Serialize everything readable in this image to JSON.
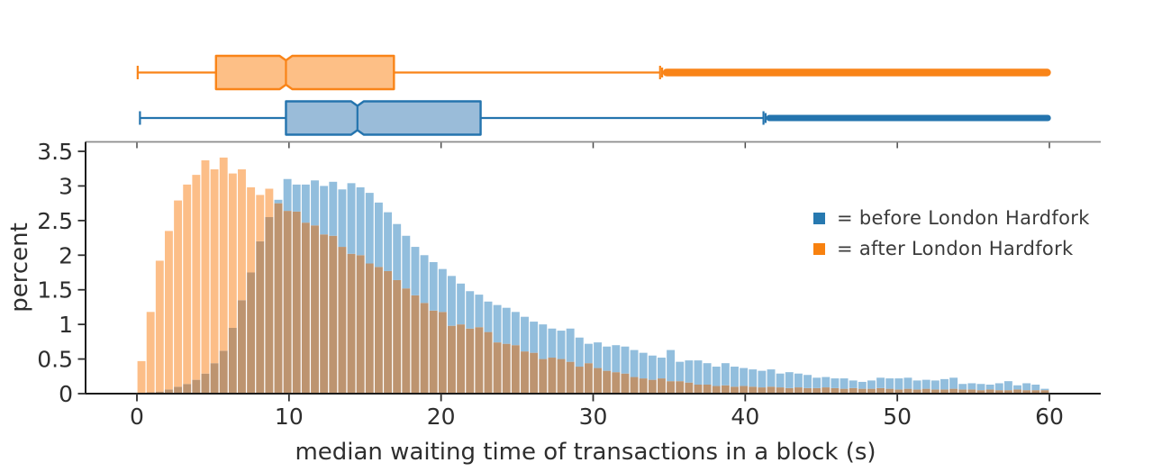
{
  "legend": {
    "items": [
      {
        "label": "= before London Hardfork",
        "color": "#2779b0"
      },
      {
        "label": "= after London Hardfork",
        "color": "#f8810f"
      }
    ]
  },
  "chart_data": {
    "type": "histogram+boxplot",
    "xlabel": "median waiting time of transactions in a block (s)",
    "ylabel": "percent",
    "x_ticks": [
      0,
      10,
      20,
      30,
      40,
      50,
      60
    ],
    "y_ticks": [
      0,
      0.5,
      1,
      1.5,
      2,
      2.5,
      3,
      3.5
    ],
    "xlim": [
      0,
      60
    ],
    "ylim": [
      0,
      3.5
    ],
    "grid": false,
    "legend_position": "upper right",
    "bin_start": 0,
    "bin_width": 0.6,
    "overlap_color": "#bd9470",
    "series": [
      {
        "name": "before London Hardfork",
        "color": "#92bedd",
        "values": [
          0.01,
          0.02,
          0.03,
          0.06,
          0.1,
          0.14,
          0.2,
          0.29,
          0.44,
          0.62,
          0.95,
          1.35,
          1.75,
          2.2,
          2.55,
          2.8,
          3.1,
          3.02,
          3.02,
          3.08,
          3.0,
          3.06,
          2.95,
          3.04,
          2.98,
          2.9,
          2.76,
          2.62,
          2.45,
          2.28,
          2.12,
          2.0,
          1.9,
          1.8,
          1.7,
          1.59,
          1.48,
          1.43,
          1.33,
          1.28,
          1.24,
          1.18,
          1.11,
          1.04,
          1.0,
          0.94,
          0.91,
          0.94,
          0.81,
          0.72,
          0.74,
          0.68,
          0.7,
          0.68,
          0.63,
          0.59,
          0.55,
          0.52,
          0.63,
          0.46,
          0.48,
          0.48,
          0.44,
          0.39,
          0.44,
          0.39,
          0.37,
          0.35,
          0.33,
          0.35,
          0.29,
          0.31,
          0.29,
          0.27,
          0.23,
          0.24,
          0.22,
          0.22,
          0.19,
          0.17,
          0.19,
          0.23,
          0.22,
          0.22,
          0.23,
          0.19,
          0.2,
          0.19,
          0.21,
          0.23,
          0.14,
          0.15,
          0.14,
          0.13,
          0.15,
          0.18,
          0.12,
          0.15,
          0.13,
          0.07
        ]
      },
      {
        "name": "after London Hardfork",
        "color": "#fcbe88",
        "values": [
          0.47,
          1.18,
          1.92,
          2.35,
          2.79,
          3.02,
          3.16,
          3.37,
          3.24,
          3.41,
          3.18,
          3.24,
          2.98,
          2.87,
          2.96,
          2.75,
          2.64,
          2.63,
          2.47,
          2.43,
          2.3,
          2.28,
          2.12,
          2.02,
          2.0,
          1.88,
          1.83,
          1.77,
          1.64,
          1.52,
          1.42,
          1.31,
          1.2,
          1.18,
          0.98,
          1.0,
          0.94,
          0.96,
          0.89,
          0.74,
          0.72,
          0.7,
          0.61,
          0.59,
          0.5,
          0.52,
          0.5,
          0.46,
          0.39,
          0.44,
          0.37,
          0.33,
          0.31,
          0.29,
          0.24,
          0.22,
          0.2,
          0.22,
          0.18,
          0.18,
          0.16,
          0.13,
          0.13,
          0.11,
          0.12,
          0.1,
          0.11,
          0.1,
          0.09,
          0.1,
          0.09,
          0.08,
          0.09,
          0.08,
          0.08,
          0.09,
          0.08,
          0.07,
          0.08,
          0.07,
          0.07,
          0.08,
          0.07,
          0.06,
          0.07,
          0.06,
          0.07,
          0.06,
          0.06,
          0.07,
          0.06,
          0.06,
          0.05,
          0.06,
          0.05,
          0.05,
          0.06,
          0.05,
          0.05,
          0.05
        ]
      }
    ],
    "boxplots": [
      {
        "name": "after London Hardfork",
        "whisker_low": 0.05,
        "q1": 5.2,
        "median": 9.8,
        "q3": 16.9,
        "whisker_high": 34.4,
        "outliers_extend_to": 60.1,
        "fill": "#fdbf86",
        "stroke": "#f98418"
      },
      {
        "name": "before London Hardfork",
        "whisker_low": 0.2,
        "q1": 9.8,
        "median": 14.5,
        "q3": 22.6,
        "whisker_high": 41.2,
        "outliers_extend_to": 60.1,
        "fill": "#9abcd9",
        "stroke": "#2474ae"
      }
    ]
  }
}
